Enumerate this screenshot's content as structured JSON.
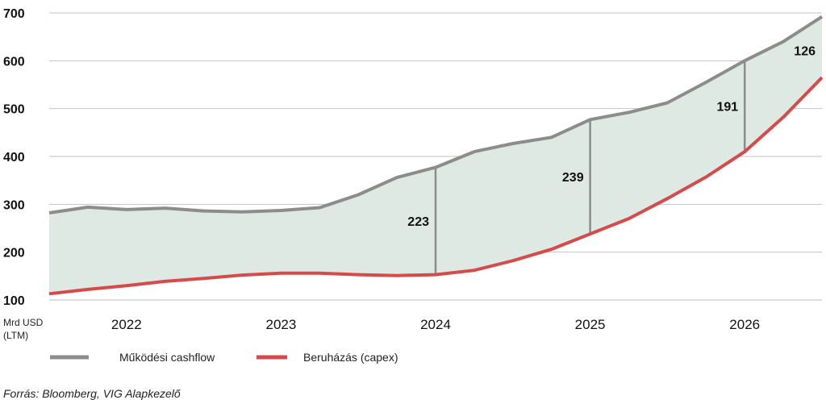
{
  "chart_data": {
    "type": "area",
    "ylim": [
      100,
      700
    ],
    "yticks": [
      700,
      600,
      500,
      400,
      300,
      200,
      100
    ],
    "unit_label": [
      "Mrd USD",
      "(LTM)"
    ],
    "xlim": [
      2021.5,
      2026.5
    ],
    "year_labels": [
      "2022",
      "2023",
      "2024",
      "2025",
      "2026"
    ],
    "year_positions": [
      2022,
      2023,
      2024,
      2025,
      2026
    ],
    "grid": true,
    "fill_color": "#dfe9e4",
    "series": [
      {
        "name": "Működési cashflow",
        "color": "#8c8c8c",
        "points": [
          [
            2021.5,
            282
          ],
          [
            2021.75,
            294
          ],
          [
            2022.0,
            289
          ],
          [
            2022.25,
            292
          ],
          [
            2022.5,
            286
          ],
          [
            2022.75,
            284
          ],
          [
            2023.0,
            287
          ],
          [
            2023.25,
            293
          ],
          [
            2023.5,
            320
          ],
          [
            2023.75,
            356
          ],
          [
            2024.0,
            377
          ],
          [
            2024.25,
            410
          ],
          [
            2024.5,
            427
          ],
          [
            2024.75,
            440
          ],
          [
            2025.0,
            477
          ],
          [
            2025.25,
            492
          ],
          [
            2025.5,
            512
          ],
          [
            2025.75,
            555
          ],
          [
            2026.0,
            600
          ],
          [
            2026.25,
            640
          ],
          [
            2026.5,
            692
          ]
        ]
      },
      {
        "name": "Beruházás (capex)",
        "color": "#d84a4a",
        "points": [
          [
            2021.5,
            113
          ],
          [
            2021.75,
            122
          ],
          [
            2022.0,
            130
          ],
          [
            2022.25,
            139
          ],
          [
            2022.5,
            145
          ],
          [
            2022.75,
            152
          ],
          [
            2023.0,
            156
          ],
          [
            2023.25,
            156
          ],
          [
            2023.5,
            153
          ],
          [
            2023.75,
            151
          ],
          [
            2024.0,
            153
          ],
          [
            2024.25,
            162
          ],
          [
            2024.5,
            182
          ],
          [
            2024.75,
            206
          ],
          [
            2025.0,
            238
          ],
          [
            2025.25,
            270
          ],
          [
            2025.5,
            312
          ],
          [
            2025.75,
            357
          ],
          [
            2026.0,
            410
          ],
          [
            2026.25,
            482
          ],
          [
            2026.5,
            565
          ]
        ]
      }
    ],
    "annotations": [
      {
        "x": 2024.0,
        "label": "223"
      },
      {
        "x": 2025.0,
        "label": "239"
      },
      {
        "x": 2026.0,
        "label": "191"
      },
      {
        "x": 2026.5,
        "label": "126"
      }
    ],
    "source": "Forrás: Bloomberg, VIG Alapkezelő"
  }
}
